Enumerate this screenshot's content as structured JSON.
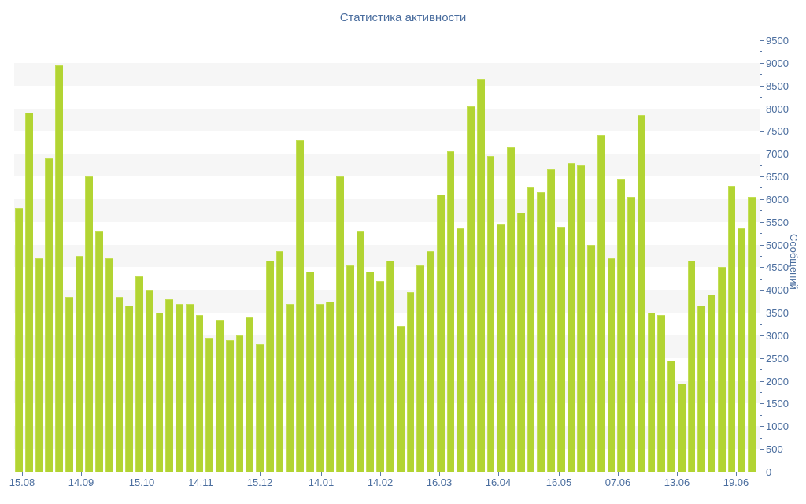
{
  "title": "Статистика активности",
  "y_axis": {
    "title": "Сообщений",
    "min": 0,
    "max": 9500,
    "step": 500,
    "minor_step": 250
  },
  "x_axis": {
    "labels": [
      "15.08",
      "14.09",
      "15.10",
      "14.11",
      "15.12",
      "14.01",
      "14.02",
      "16.03",
      "16.04",
      "16.05",
      "07.06",
      "13.06",
      "19.06"
    ]
  },
  "colors": {
    "bar": "#b2d433",
    "bar_edge": "#c3df55",
    "text": "#4a6d9e",
    "axis": "#5b79a6",
    "stripe": "#f6f6f6",
    "background": "#ffffff"
  },
  "chart_data": {
    "type": "bar",
    "title": "Статистика активности",
    "xlabel": "",
    "ylabel": "Сообщений",
    "ylim": [
      0,
      9500
    ],
    "grid": "alternating horizontal stripes, 500-unit bands",
    "legend": "none",
    "x_tick_labels": [
      "15.08",
      "14.09",
      "15.10",
      "14.11",
      "15.12",
      "14.01",
      "14.02",
      "16.03",
      "16.04",
      "16.05",
      "07.06",
      "13.06",
      "19.06"
    ],
    "values": [
      5800,
      7900,
      4700,
      6900,
      8950,
      3850,
      4750,
      6500,
      5300,
      4700,
      3850,
      3650,
      4300,
      4000,
      3500,
      3800,
      3700,
      3700,
      3450,
      2950,
      3350,
      2900,
      3000,
      3400,
      2800,
      4650,
      4850,
      3700,
      7300,
      4400,
      3700,
      3750,
      6500,
      4550,
      5300,
      4400,
      4200,
      4650,
      3200,
      3950,
      4550,
      4850,
      6100,
      7050,
      5350,
      8050,
      8650,
      6950,
      5450,
      7150,
      5700,
      6250,
      6150,
      6650,
      5400,
      6800,
      6750,
      5000,
      7400,
      4700,
      6450,
      6050,
      7850,
      3500,
      3450,
      2450,
      1950,
      4650,
      3650,
      3900,
      4500,
      6300,
      5350,
      6050
    ]
  }
}
